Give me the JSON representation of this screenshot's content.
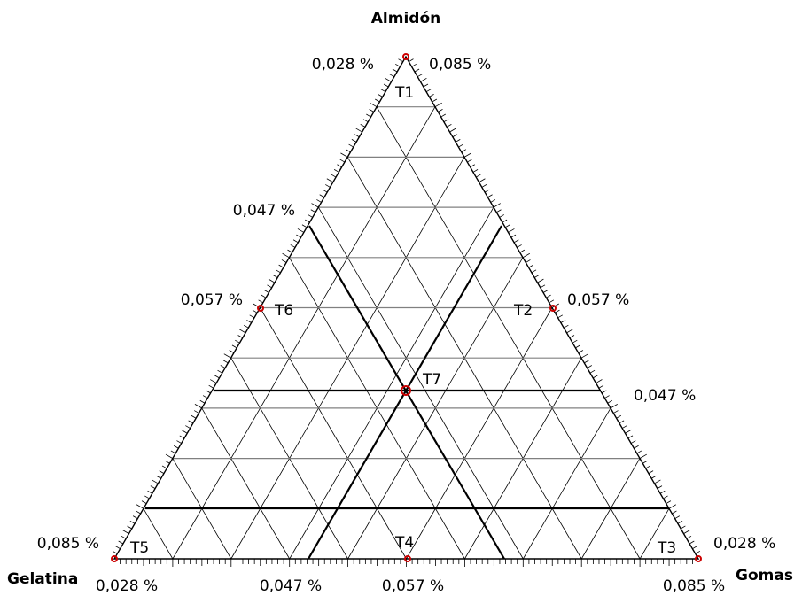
{
  "vertices": {
    "top": "Almidón",
    "left": "Gelatina",
    "right": "Gomas"
  },
  "corner_labels": {
    "top_left": "0,028 %",
    "top_right": "0,085 %",
    "left_side_upper": "0,047 %",
    "left_side_mid": "0,057 %",
    "right_side_mid": "0,057 %",
    "right_side_lower": "0,047 %",
    "bottom_left_edge": "0,085 %",
    "bottom_right_edge": "0,028 %",
    "base_1": "0,028 %",
    "base_2": "0,047 %",
    "base_3": "0,057 %",
    "base_4": "0,085 %"
  },
  "treatments": {
    "T1": "T1",
    "T2": "T2",
    "T3": "T3",
    "T4": "T4",
    "T5": "T5",
    "T6": "T6",
    "T7": "T7"
  },
  "colors": {
    "grid": "#000000",
    "horizontal_grid": "#808080",
    "bold_lines": "#000000",
    "point_marker": "#cc0000"
  }
}
